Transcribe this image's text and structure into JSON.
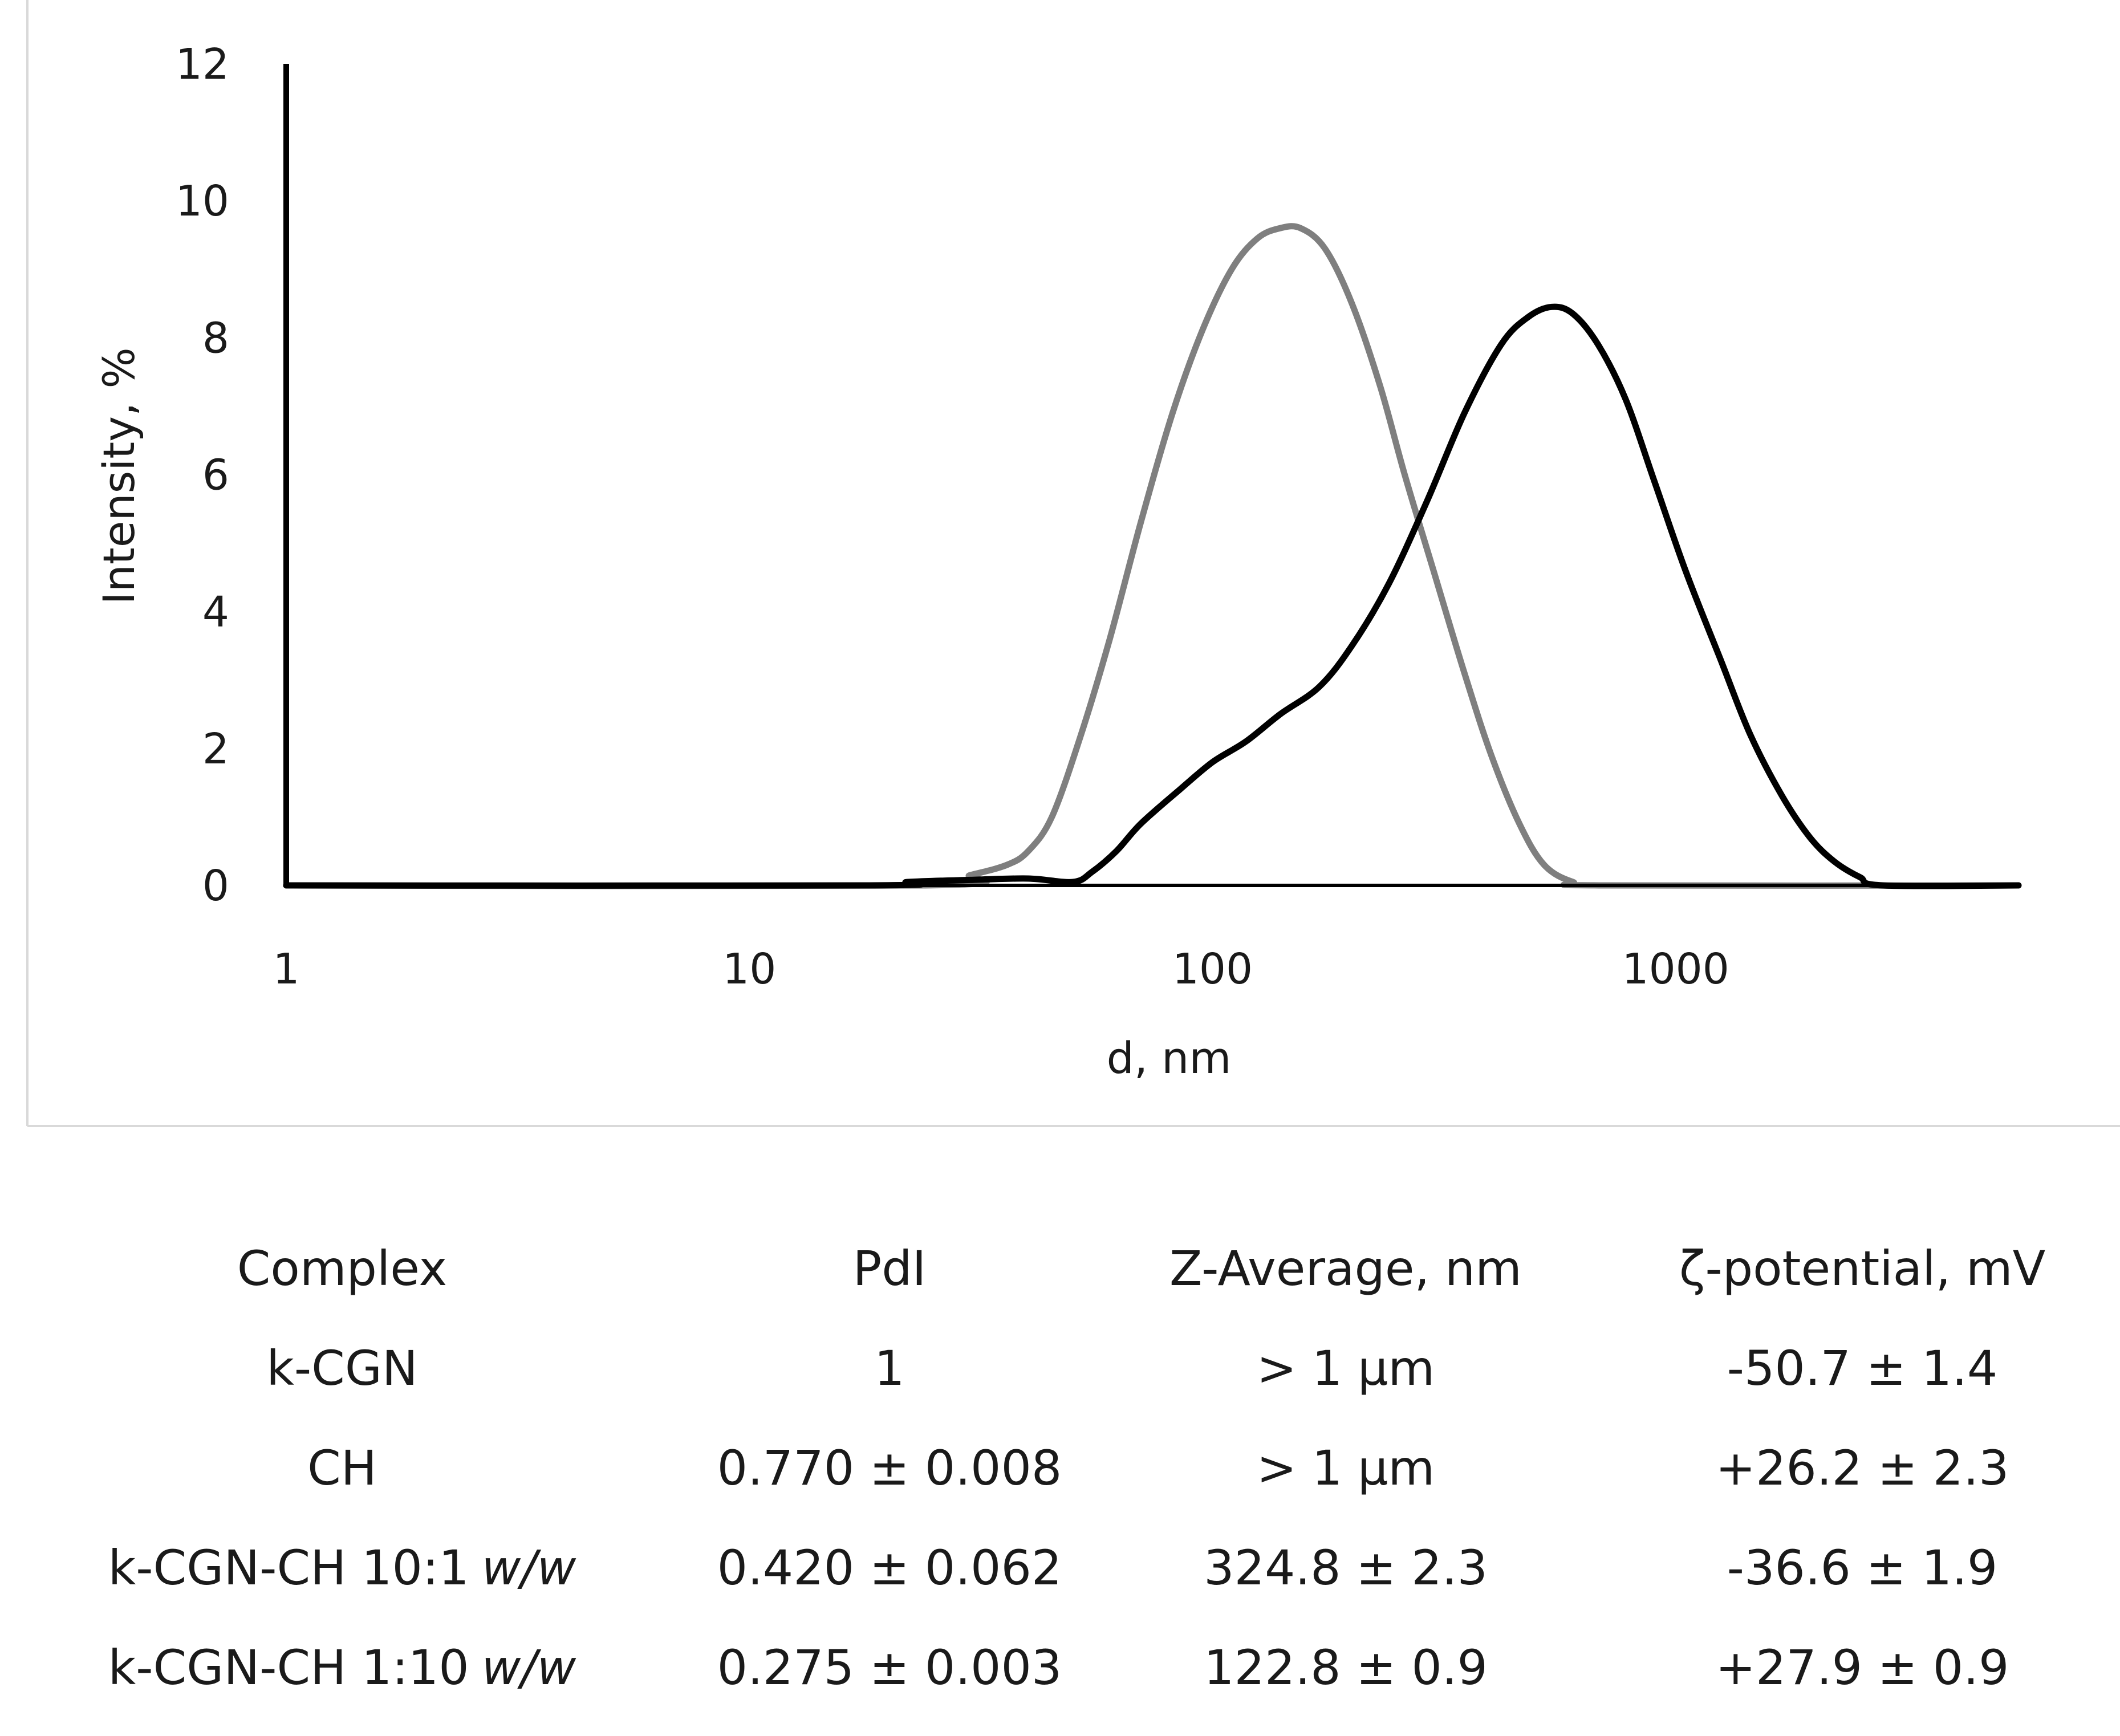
{
  "colors": {
    "k_cgn_ch_10_1": "#000000",
    "k_cgn_ch_1_10": "#7f7f7f",
    "axis": "#000000",
    "frame": "#d9d9d9"
  },
  "chart_data": {
    "type": "line",
    "title": "",
    "xlabel": "d, nm",
    "ylabel": "Intensity, %",
    "xscale": "log",
    "xlim": [
      1,
      5500
    ],
    "ylim": [
      0,
      12
    ],
    "xticks": [
      1,
      10,
      100,
      1000
    ],
    "yticks": [
      0,
      2,
      4,
      6,
      8,
      10,
      12
    ],
    "grid": false,
    "legend": "none",
    "series": [
      {
        "name": "k-CGN-CH 10:1 w/w",
        "color": "black",
        "points": [
          [
            1,
            0
          ],
          [
            18,
            0
          ],
          [
            22,
            0.05
          ],
          [
            30,
            0.08
          ],
          [
            40,
            0.1
          ],
          [
            50,
            0.05
          ],
          [
            55,
            0.2
          ],
          [
            62,
            0.5
          ],
          [
            70,
            0.9
          ],
          [
            85,
            1.4
          ],
          [
            100,
            1.8
          ],
          [
            118,
            2.1
          ],
          [
            140,
            2.5
          ],
          [
            170,
            2.9
          ],
          [
            200,
            3.5
          ],
          [
            240,
            4.4
          ],
          [
            290,
            5.6
          ],
          [
            350,
            6.9
          ],
          [
            420,
            7.9
          ],
          [
            480,
            8.3
          ],
          [
            540,
            8.45
          ],
          [
            600,
            8.35
          ],
          [
            680,
            7.9
          ],
          [
            780,
            7.1
          ],
          [
            900,
            5.9
          ],
          [
            1050,
            4.6
          ],
          [
            1250,
            3.3
          ],
          [
            1450,
            2.2
          ],
          [
            1700,
            1.3
          ],
          [
            1950,
            0.7
          ],
          [
            2200,
            0.35
          ],
          [
            2500,
            0.12
          ],
          [
            2800,
            0.0
          ],
          [
            5500,
            0.0
          ]
        ]
      },
      {
        "name": "k-CGN-CH 1:10 w/w",
        "color": "gray",
        "points": [
          [
            1,
            0
          ],
          [
            24,
            0
          ],
          [
            30,
            0.15
          ],
          [
            36,
            0.3
          ],
          [
            40,
            0.5
          ],
          [
            45,
            1.0
          ],
          [
            52,
            2.2
          ],
          [
            60,
            3.6
          ],
          [
            70,
            5.3
          ],
          [
            82,
            6.9
          ],
          [
            95,
            8.1
          ],
          [
            110,
            9.0
          ],
          [
            125,
            9.45
          ],
          [
            140,
            9.6
          ],
          [
            155,
            9.6
          ],
          [
            175,
            9.3
          ],
          [
            200,
            8.5
          ],
          [
            230,
            7.3
          ],
          [
            260,
            6.0
          ],
          [
            300,
            4.6
          ],
          [
            350,
            3.1
          ],
          [
            400,
            1.9
          ],
          [
            460,
            0.9
          ],
          [
            520,
            0.3
          ],
          [
            600,
            0.05
          ],
          [
            700,
            0.0
          ],
          [
            5500,
            0.0
          ]
        ]
      }
    ]
  },
  "table": {
    "headers": [
      "Complex",
      "PdI",
      "Z-Average, nm",
      "ζ-potential, mV"
    ],
    "rows": [
      {
        "complex": "k-CGN",
        "ratio": "",
        "pdi": "1",
        "zavg": "> 1 μm",
        "zeta": "-50.7 ± 1.4"
      },
      {
        "complex": "CH",
        "ratio": "",
        "pdi": "0.770 ± 0.008",
        "zavg": "> 1 μm",
        "zeta": "+26.2 ± 2.3"
      },
      {
        "complex": "k-CGN-CH 10:1",
        "ratio": "w/w",
        "pdi": "0.420 ± 0.062",
        "zavg": "324.8 ± 2.3",
        "zeta": "-36.6 ± 1.9"
      },
      {
        "complex": "k-CGN-CH 1:10",
        "ratio": "w/w",
        "pdi": "0.275 ± 0.003",
        "zavg": "122.8 ± 0.9",
        "zeta": "+27.9 ± 0.9"
      }
    ]
  }
}
